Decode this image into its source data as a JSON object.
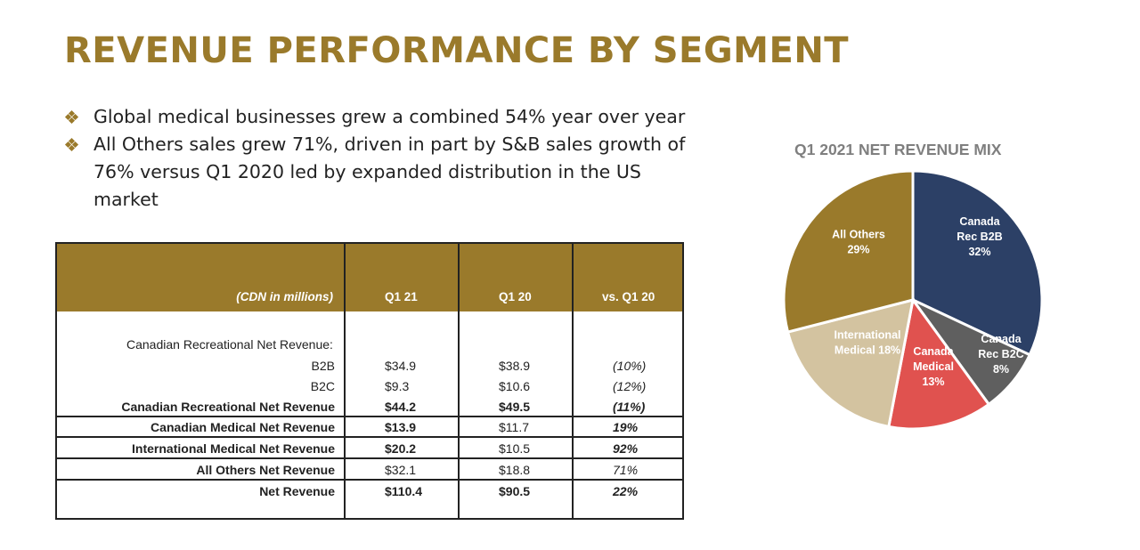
{
  "title": "REVENUE PERFORMANCE BY SEGMENT",
  "bullets": [
    {
      "lines": [
        "Global medical businesses grew a combined 54% year over year"
      ]
    },
    {
      "lines": [
        "All Others sales grew 71%, driven in part by S&B sales growth of",
        "76% versus Q1 2020 led by expanded distribution in the US market"
      ]
    }
  ],
  "table": {
    "header": {
      "label": "(CDN in millions)",
      "col1": "Q1 21",
      "col2": "Q1 20",
      "col3": "vs. Q1 20"
    },
    "section_label": "Canadian Recreational Net Revenue:",
    "rows": [
      {
        "label": "B2B",
        "q121": "$34.9",
        "q120": "$38.9",
        "vs": "(10%)"
      },
      {
        "label": "B2C",
        "q121": "$9.3",
        "q120": "$10.6",
        "vs": "(12%)"
      },
      {
        "label": "Canadian Recreational Net Revenue",
        "q121": "$44.2",
        "q120": "$49.5",
        "vs": "(11%)"
      },
      {
        "label": "Canadian Medical Net Revenue",
        "q121": "$13.9",
        "q120": "$11.7",
        "vs": "19%"
      },
      {
        "label": "International Medical Net Revenue",
        "q121": "$20.2",
        "q120": "$10.5",
        "vs": "92%"
      },
      {
        "label": "All Others Net Revenue",
        "q121": "$32.1",
        "q120": "$18.8",
        "vs": "71%"
      },
      {
        "label": "Net Revenue",
        "q121": "$110.4",
        "q120": "$90.5",
        "vs": "22%"
      }
    ]
  },
  "chart_data": {
    "type": "pie",
    "title": "Q1 2021 NET REVENUE MIX",
    "slices": [
      {
        "label_lines": [
          "Canada",
          "Rec B2B",
          "32%"
        ],
        "value": 32,
        "color": "#2c4066"
      },
      {
        "label_lines": [
          "Canada",
          "Rec B2C",
          "8%"
        ],
        "value": 8,
        "color": "#5f5f5f"
      },
      {
        "label_lines": [
          "Canada",
          "Medical",
          "13%"
        ],
        "value": 13,
        "color": "#e0524f"
      },
      {
        "label_lines": [
          "International",
          "Medical 18%"
        ],
        "value": 18,
        "color": "#d3c3a0"
      },
      {
        "label_lines": [
          "All Others",
          "29%"
        ],
        "value": 29,
        "color": "#9a7a2b"
      }
    ]
  }
}
